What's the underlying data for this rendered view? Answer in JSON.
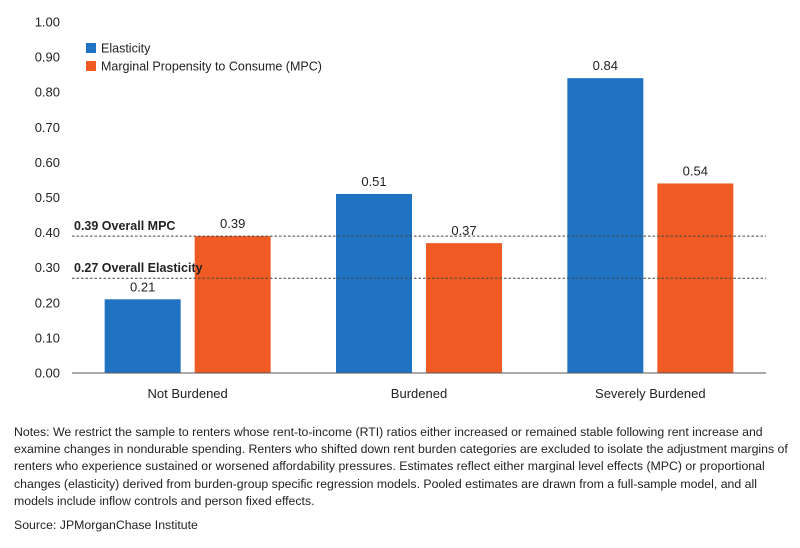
{
  "chart_data": {
    "type": "bar",
    "categories": [
      "Not Burdened",
      "Burdened",
      "Severely Burdened"
    ],
    "series": [
      {
        "name": "Elasticity",
        "color": "#1f73c2",
        "values": [
          0.21,
          0.51,
          0.84
        ],
        "labels": [
          "0.21",
          "0.51",
          "0.84"
        ]
      },
      {
        "name": "Marginal Propensity to Consume (MPC)",
        "color": "#f05a23",
        "values": [
          0.39,
          0.37,
          0.54
        ],
        "labels": [
          "0.39",
          "0.37",
          "0.54"
        ]
      }
    ],
    "ylim": [
      0,
      1.0
    ],
    "yticks": [
      "0.00",
      "0.10",
      "0.20",
      "0.30",
      "0.40",
      "0.50",
      "0.60",
      "0.70",
      "0.80",
      "0.90",
      "1.00"
    ],
    "reference_lines": [
      {
        "value": 0.39,
        "label": "0.39 Overall MPC"
      },
      {
        "value": 0.27,
        "label": "0.27 Overall Elasticity"
      }
    ],
    "legend_position": "top-left",
    "grid": false
  },
  "notes": "Notes: We restrict the sample to renters whose rent-to-income (RTI) ratios either increased or remained stable following rent increase and examine changes in nondurable spending. Renters who shifted down rent burden categories are excluded to isolate the adjustment margins of renters who experience sustained or worsened affordability pressures. Estimates reflect either marginal level effects (MPC) or proportional changes (elasticity) derived from burden-group specific regression models. Pooled estimates are drawn from a full-sample model, and all models include inflow controls and person fixed effects.",
  "source": "Source: JPMorganChase Institute"
}
